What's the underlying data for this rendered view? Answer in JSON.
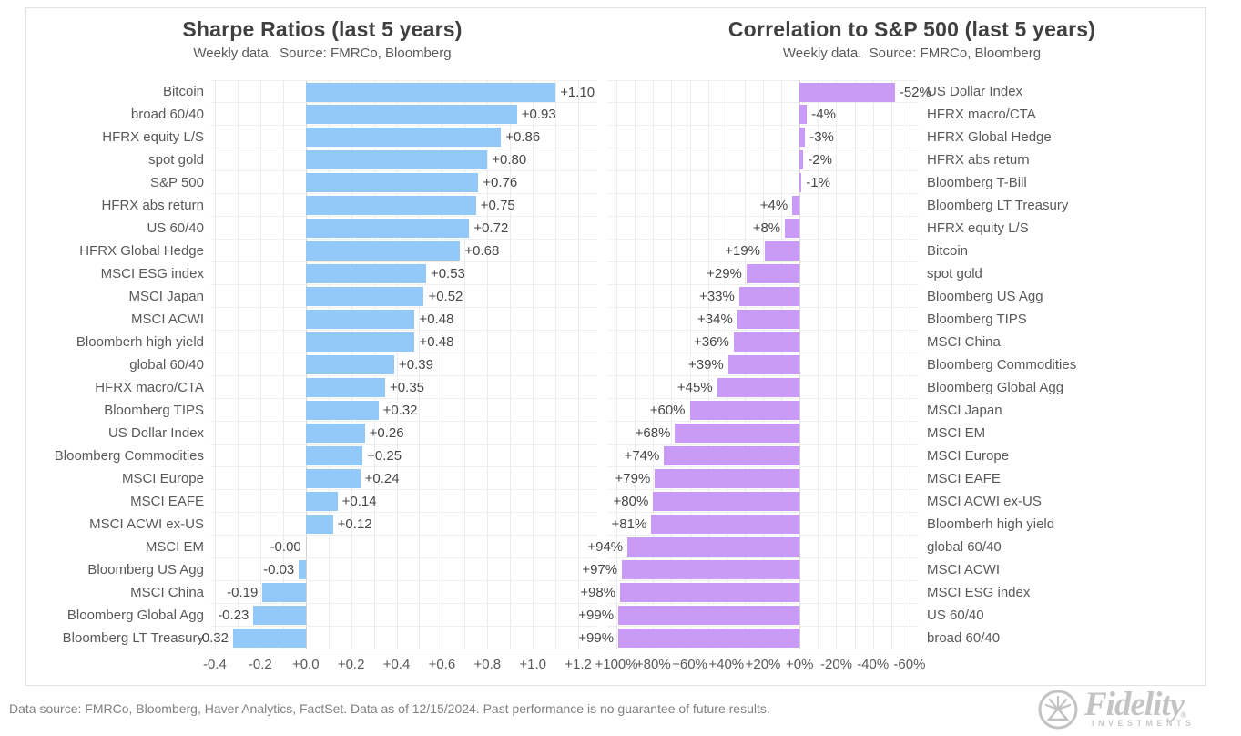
{
  "footer": {
    "disclaimer": "Data source: FMRCo, Bloomberg, Haver Analytics, FactSet. Data as of 12/15/2024. Past performance is no guarantee of future results."
  },
  "logo": {
    "brand": "Fidelity",
    "sub": "INVESTMENTS",
    "reg": "®"
  },
  "chart_data": [
    {
      "type": "bar",
      "orientation": "horizontal",
      "title": "Sharpe Ratios (last 5 years)",
      "subtitle": "Weekly data.  Source: FMRCo, Bloomberg",
      "bar_color": "#92c9f8",
      "axis_reversed": false,
      "xlim": [
        -0.42,
        1.28
      ],
      "minor_grid_step": 0.1,
      "grid": true,
      "ticks": [
        {
          "value": -0.4,
          "label": "-0.4"
        },
        {
          "value": -0.2,
          "label": "-0.2"
        },
        {
          "value": 0.0,
          "label": "+0.0"
        },
        {
          "value": 0.2,
          "label": "+0.2"
        },
        {
          "value": 0.4,
          "label": "+0.4"
        },
        {
          "value": 0.6,
          "label": "+0.6"
        },
        {
          "value": 0.8,
          "label": "+0.8"
        },
        {
          "value": 1.0,
          "label": "+1.0"
        },
        {
          "value": 1.2,
          "label": "+1.2"
        }
      ],
      "categories": [
        "Bitcoin",
        "broad 60/40",
        "HFRX equity L/S",
        "spot gold",
        "S&P 500",
        "HFRX abs return",
        "US 60/40",
        "HFRX Global Hedge",
        "MSCI ESG index",
        "MSCI Japan",
        "MSCI ACWI",
        "Bloomberh high yield",
        "global 60/40",
        "HFRX macro/CTA",
        "Bloomberg TIPS",
        "US Dollar Index",
        "Bloomberg Commodities",
        "MSCI Europe",
        "MSCI EAFE",
        "MSCI ACWI ex-US",
        "MSCI EM",
        "Bloomberg US Agg",
        "MSCI China",
        "Bloomberg Global Agg",
        "Bloomberg LT Treasury"
      ],
      "values": [
        1.1,
        0.93,
        0.86,
        0.8,
        0.76,
        0.75,
        0.72,
        0.68,
        0.53,
        0.52,
        0.48,
        0.48,
        0.39,
        0.35,
        0.32,
        0.26,
        0.25,
        0.24,
        0.14,
        0.12,
        0.0,
        -0.03,
        -0.19,
        -0.23,
        -0.32
      ],
      "value_labels": [
        "+1.10",
        "+0.93",
        "+0.86",
        "+0.80",
        "+0.76",
        "+0.75",
        "+0.72",
        "+0.68",
        "+0.53",
        "+0.52",
        "+0.48",
        "+0.48",
        "+0.39",
        "+0.35",
        "+0.32",
        "+0.26",
        "+0.25",
        "+0.24",
        "+0.14",
        "+0.12",
        "-0.00",
        "-0.03",
        "-0.19",
        "-0.23",
        "-0.32"
      ],
      "category_side": "left"
    },
    {
      "type": "bar",
      "orientation": "horizontal",
      "title": "Correlation to S&P 500 (last 5 years)",
      "subtitle": "Weekly data.  Source: FMRCo, Bloomberg",
      "bar_color": "#c99bf6",
      "axis_reversed": true,
      "xlim": [
        105,
        -65
      ],
      "minor_grid_step": 10,
      "grid": true,
      "ticks": [
        {
          "value": 100,
          "label": "+100%"
        },
        {
          "value": 80,
          "label": "+80%"
        },
        {
          "value": 60,
          "label": "+60%"
        },
        {
          "value": 40,
          "label": "+40%"
        },
        {
          "value": 20,
          "label": "+20%"
        },
        {
          "value": 0,
          "label": "+0%"
        },
        {
          "value": -20,
          "label": "-20%"
        },
        {
          "value": -40,
          "label": "-40%"
        },
        {
          "value": -60,
          "label": "-60%"
        }
      ],
      "categories": [
        "US Dollar Index",
        "HFRX macro/CTA",
        "HFRX Global Hedge",
        "HFRX abs return",
        "Bloomberg T-Bill",
        "Bloomberg LT Treasury",
        "HFRX equity L/S",
        "Bitcoin",
        "spot gold",
        "Bloomberg US Agg",
        "Bloomberg TIPS",
        "MSCI China",
        "Bloomberg Commodities",
        "Bloomberg Global Agg",
        "MSCI Japan",
        "MSCI EM",
        "MSCI Europe",
        "MSCI EAFE",
        "MSCI ACWI ex-US",
        "Bloomberh high yield",
        "global 60/40",
        "MSCI ACWI",
        "MSCI ESG index",
        "US 60/40",
        "broad 60/40"
      ],
      "values": [
        -52,
        -4,
        -3,
        -2,
        -1,
        4,
        8,
        19,
        29,
        33,
        34,
        36,
        39,
        45,
        60,
        68,
        74,
        79,
        80,
        81,
        94,
        97,
        98,
        99,
        99
      ],
      "value_labels": [
        "-52%",
        "-4%",
        "-3%",
        "-2%",
        "-1%",
        "+4%",
        "+8%",
        "+19%",
        "+29%",
        "+33%",
        "+34%",
        "+36%",
        "+39%",
        "+45%",
        "+60%",
        "+68%",
        "+74%",
        "+79%",
        "+80%",
        "+81%",
        "+94%",
        "+97%",
        "+98%",
        "+99%",
        "+99%"
      ],
      "category_side": "right"
    }
  ]
}
